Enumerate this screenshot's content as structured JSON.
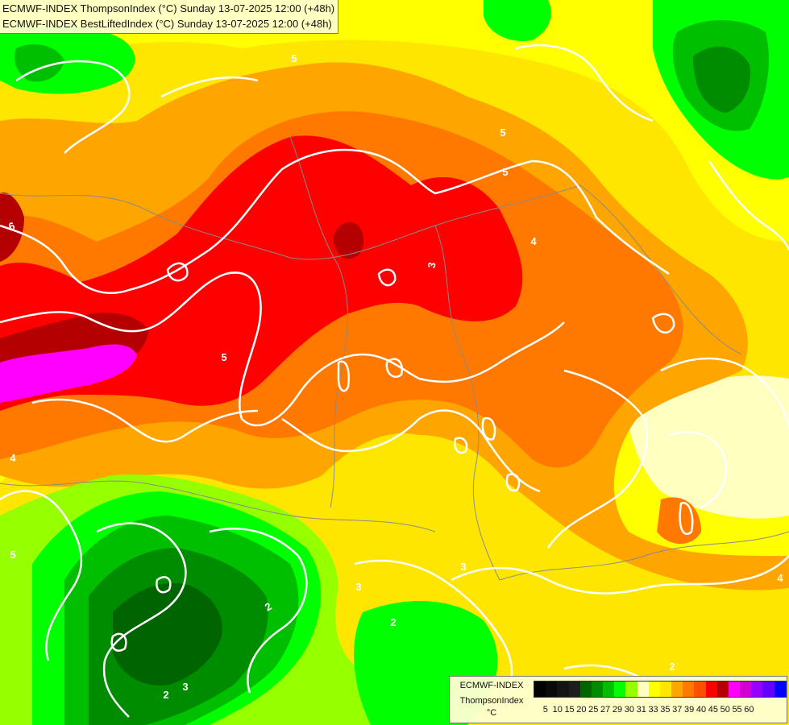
{
  "header": {
    "line1": "ECMWF-INDEX ThompsonIndex (°C) Sunday 13-07-2025 12:00 (+48h)",
    "line2": "ECMWF-INDEX BestLiftedIndex (°C) Sunday 13-07-2025 12:00 (+48h)"
  },
  "legend": {
    "model": "ECMWF-INDEX",
    "name": "ThompsonIndex",
    "unit": "°C",
    "colors": [
      "#000000",
      "#0a0a0a",
      "#141414",
      "#1e1e1e",
      "#006400",
      "#008c00",
      "#00be00",
      "#00ff00",
      "#96ff00",
      "#ffffc0",
      "#ffff00",
      "#ffe600",
      "#ffa500",
      "#ff7800",
      "#ff5000",
      "#ff0000",
      "#b40000",
      "#ff00ff",
      "#d200d2",
      "#9600ff",
      "#6400ff",
      "#0000ff"
    ],
    "ticks": [
      "5",
      "10",
      "15",
      "20",
      "25",
      "27",
      "29",
      "30",
      "31",
      "33",
      "35",
      "37",
      "39",
      "40",
      "45",
      "50",
      "55",
      "60"
    ]
  },
  "contour_labels": [
    "6",
    "5",
    "5",
    "4",
    "3",
    "4",
    "3",
    "2",
    "3",
    "2",
    "3",
    "5",
    "2",
    "2",
    "5",
    "4",
    "5"
  ]
}
